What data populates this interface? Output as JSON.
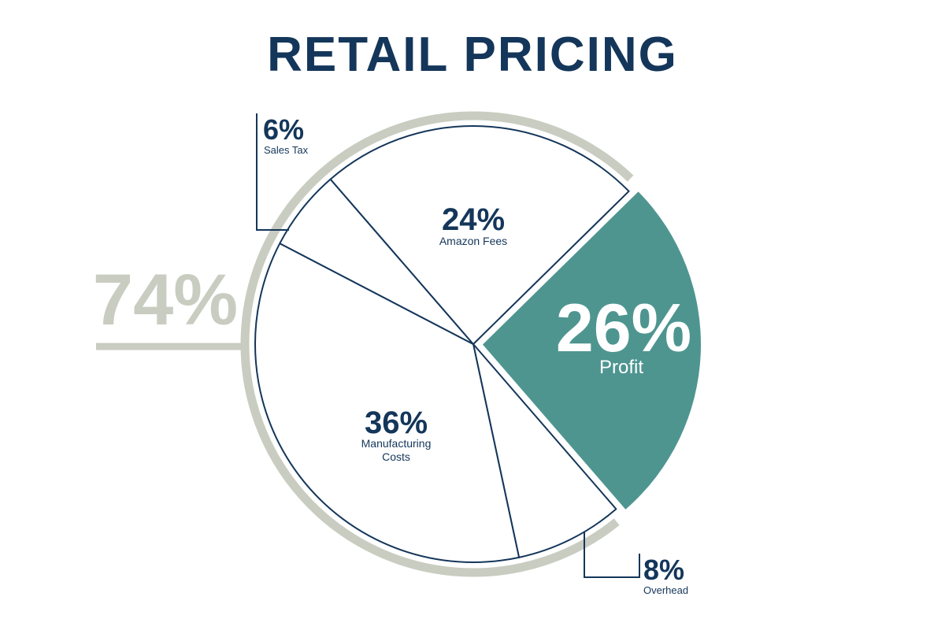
{
  "chart_data": {
    "type": "pie",
    "title": "RETAIL PRICING",
    "slices": [
      {
        "label": "Profit",
        "value": 26,
        "value_label": "26%",
        "highlighted": true
      },
      {
        "label": "Overhead",
        "value": 8,
        "value_label": "8%"
      },
      {
        "label": "Manufacturing Costs",
        "value": 36,
        "value_label": "36%"
      },
      {
        "label": "Sales Tax",
        "value": 6,
        "value_label": "6%"
      },
      {
        "label": "Amazon Fees",
        "value": 24,
        "value_label": "24%"
      }
    ],
    "labels": {
      "manufacturing_line1": "Manufacturing",
      "manufacturing_line2": "Costs"
    },
    "annotation": {
      "value": 74,
      "value_label": "74%",
      "description": "sum of non-profit slices (outer ring)"
    }
  },
  "colors": {
    "navy": "#14365a",
    "teal": "#4e9590",
    "ring_gray": "#c9ccc0",
    "white": "#ffffff"
  }
}
